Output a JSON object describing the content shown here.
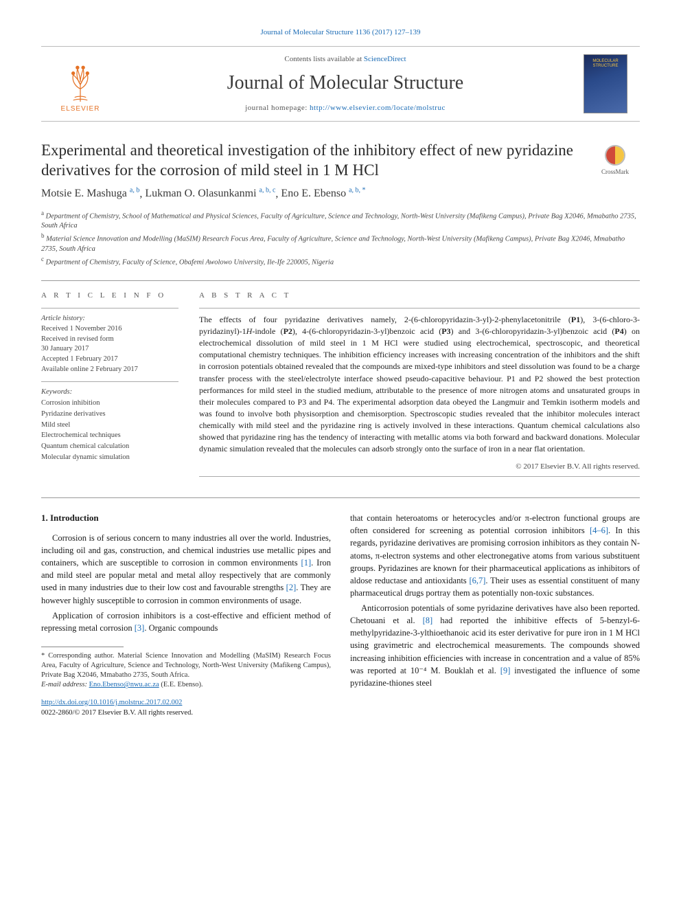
{
  "top_citation": "Journal of Molecular Structure 1136 (2017) 127–139",
  "header": {
    "contents_prefix": "Contents lists available at ",
    "contents_link": "ScienceDirect",
    "journal_name": "Journal of Molecular Structure",
    "homepage_prefix": "journal homepage: ",
    "homepage_url": "http://www.elsevier.com/locate/molstruc",
    "elsevier_word": "ELSEVIER",
    "cover_text": "MOLECULAR STRUCTURE"
  },
  "crossmark_label": "CrossMark",
  "title": "Experimental and theoretical investigation of the inhibitory effect of new pyridazine derivatives for the corrosion of mild steel in 1 M HCl",
  "authors_html": [
    {
      "name": "Motsie E. Mashuga",
      "affs": "a, b"
    },
    {
      "name": "Lukman O. Olasunkanmi",
      "affs": "a, b, c"
    },
    {
      "name": "Eno E. Ebenso",
      "affs": "a, b, *"
    }
  ],
  "affiliations": [
    {
      "sup": "a",
      "text": "Department of Chemistry, School of Mathematical and Physical Sciences, Faculty of Agriculture, Science and Technology, North-West University (Mafikeng Campus), Private Bag X2046, Mmabatho 2735, South Africa"
    },
    {
      "sup": "b",
      "text": "Material Science Innovation and Modelling (MaSIM) Research Focus Area, Faculty of Agriculture, Science and Technology, North-West University (Mafikeng Campus), Private Bag X2046, Mmabatho 2735, South Africa"
    },
    {
      "sup": "c",
      "text": "Department of Chemistry, Faculty of Science, Obafemi Awolowo University, Ile-Ife 220005, Nigeria"
    }
  ],
  "article_info_heading": "A R T I C L E   I N F O",
  "abstract_heading": "A B S T R A C T",
  "history_label": "Article history:",
  "history": [
    "Received 1 November 2016",
    "Received in revised form",
    "30 January 2017",
    "Accepted 1 February 2017",
    "Available online 2 February 2017"
  ],
  "keywords_label": "Keywords:",
  "keywords": [
    "Corrosion inhibition",
    "Pyridazine derivatives",
    "Mild steel",
    "Electrochemical techniques",
    "Quantum chemical calculation",
    "Molecular dynamic simulation"
  ],
  "abstract": "The effects of four pyridazine derivatives namely, 2-(6-chloropyridazin-3-yl)-2-phenylacetonitrile (P1), 3-(6-chloro-3-pyridazinyl)-1H-indole (P2), 4-(6-chloropyridazin-3-yl)benzoic acid (P3) and 3-(6-chloropyridazin-3-yl)benzoic acid (P4) on electrochemical dissolution of mild steel in 1 M HCl were studied using electrochemical, spectroscopic, and theoretical computational chemistry techniques. The inhibition efficiency increases with increasing concentration of the inhibitors and the shift in corrosion potentials obtained revealed that the compounds are mixed-type inhibitors and steel dissolution was found to be a charge transfer process with the steel/electrolyte interface showed pseudo-capacitive behaviour. P1 and P2 showed the best protection performances for mild steel in the studied medium, attributable to the presence of more nitrogen atoms and unsaturated groups in their molecules compared to P3 and P4. The experimental adsorption data obeyed the Langmuir and Temkin isotherm models and was found to involve both physisorption and chemisorption. Spectroscopic studies revealed that the inhibitor molecules interact chemically with mild steel and the pyridazine ring is actively involved in these interactions. Quantum chemical calculations also showed that pyridazine ring has the tendency of interacting with metallic atoms via both forward and backward donations. Molecular dynamic simulation revealed that the molecules can adsorb strongly onto the surface of iron in a near flat orientation.",
  "copyright": "© 2017 Elsevier B.V. All rights reserved.",
  "intro_heading": "1. Introduction",
  "col_left_p1": "Corrosion is of serious concern to many industries all over the world. Industries, including oil and gas, construction, and chemical industries use metallic pipes and containers, which are susceptible to corrosion in common environments [1]. Iron and mild steel are popular metal and metal alloy respectively that are commonly used in many industries due to their low cost and favourable strengths [2]. They are however highly susceptible to corrosion in common environments of usage.",
  "col_left_p2": "Application of corrosion inhibitors is a cost-effective and efficient method of repressing metal corrosion [3]. Organic compounds",
  "col_right_p1": "that contain heteroatoms or heterocycles and/or π-electron functional groups are often considered for screening as potential corrosion inhibitors [4–6]. In this regards, pyridazine derivatives are promising corrosion inhibitors as they contain N-atoms, π-electron systems and other electronegative atoms from various substituent groups. Pyridazines are known for their pharmaceutical applications as inhibitors of aldose reductase and antioxidants [6,7]. Their uses as essential constituent of many pharmaceutical drugs portray them as potentially non-toxic substances.",
  "col_right_p2": "Anticorrosion potentials of some pyridazine derivatives have also been reported. Chetouani et al. [8] had reported the inhibitive effects of 5-benzyl-6-methylpyridazine-3-ylthioethanoic acid its ester derivative for pure iron in 1 M HCl using gravimetric and electrochemical measurements. The compounds showed increasing inhibition efficiencies with increase in concentration and a value of 85% was reported at 10⁻⁴ M. Bouklah et al. [9] investigated the influence of some pyridazine-thiones steel",
  "footnote_corr": "* Corresponding author. Material Science Innovation and Modelling (MaSIM) Research Focus Area, Faculty of Agriculture, Science and Technology, North-West University (Mafikeng Campus), Private Bag X2046, Mmabatho 2735, South Africa.",
  "footnote_email_label": "E-mail address: ",
  "footnote_email": "Eno.Ebenso@nwu.ac.za",
  "footnote_email_suffix": " (E.E. Ebenso).",
  "doi": "http://dx.doi.org/10.1016/j.molstruc.2017.02.002",
  "issn_line": "0022-2860/© 2017 Elsevier B.V. All rights reserved.",
  "colors": {
    "link": "#1a6bb5",
    "elsevier_orange": "#e57226",
    "text": "#1a1a1a",
    "muted": "#555555",
    "rule": "#999999"
  }
}
